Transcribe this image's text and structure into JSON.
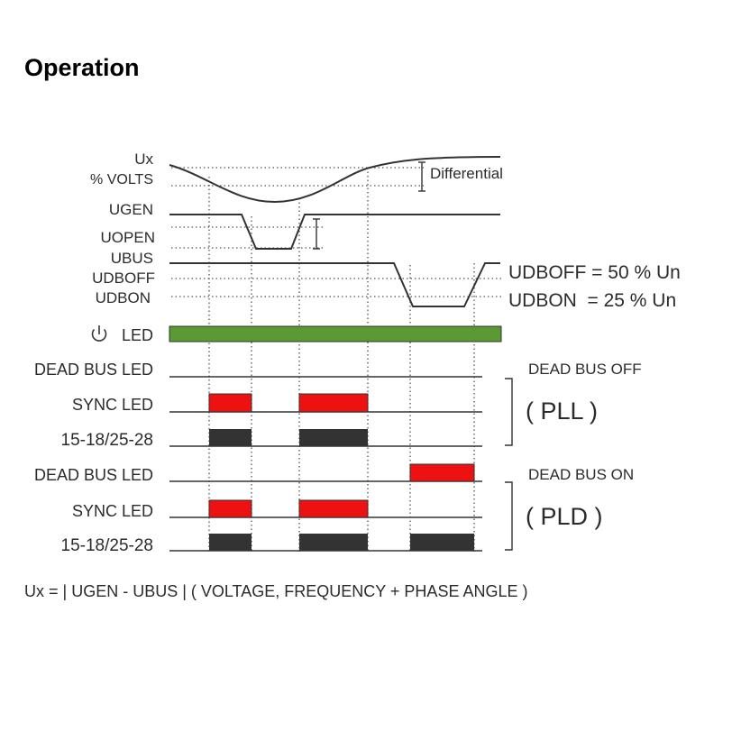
{
  "title": "Operation",
  "labels": {
    "ux": "Ux",
    "volts": "% VOLTS",
    "ugen": "UGEN",
    "uopen": "UOPEN",
    "ubus": "UBUS",
    "udboff": "UDBOFF",
    "udbon": "UDBON",
    "led": "LED",
    "differential": "Differential",
    "udboff_eq": "UDBOFF = 50 % Un",
    "udbon_eq": "UDBON  = 25 % Un",
    "dead_bus_led": "DEAD BUS LED",
    "sync_led": "SYNC LED",
    "relay": "15-18/25-28",
    "dead_bus_off": "DEAD BUS OFF",
    "pll": "( PLL )",
    "dead_bus_on": "DEAD BUS ON",
    "pld": "( PLD )",
    "footer": "Ux = | UGEN - UBUS | ( VOLTAGE, FREQUENCY + PHASE ANGLE )"
  },
  "icons": {
    "power": "power-icon"
  },
  "colors": {
    "power_led": "#5c9933",
    "active_red": "#ee1111",
    "relay_dark": "#333333"
  }
}
